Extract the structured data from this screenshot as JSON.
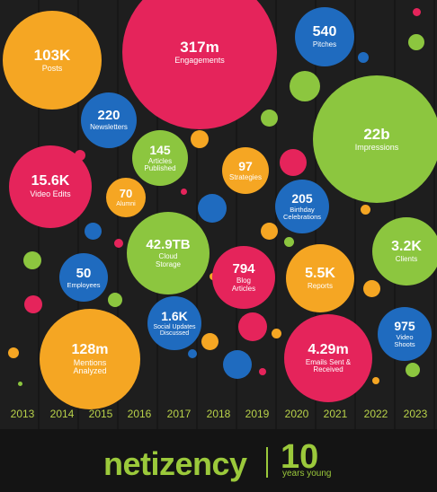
{
  "bubbles": [
    {
      "value": "103K",
      "label": "Posts",
      "color": "#f5a623"
    },
    {
      "value": "317m",
      "label": "Engagements",
      "color": "#e5245b"
    },
    {
      "value": "540",
      "label": "Pitches",
      "color": "#1f6bbf"
    },
    {
      "value": "220",
      "label": "Newsletters",
      "color": "#1f6bbf"
    },
    {
      "value": "22b",
      "label": "Impressions",
      "color": "#8cc63f"
    },
    {
      "value": "145",
      "label": "Articles Published",
      "color": "#8cc63f"
    },
    {
      "value": "97",
      "label": "Strategies",
      "color": "#f5a623"
    },
    {
      "value": "15.6K",
      "label": "Video Edits",
      "color": "#e5245b"
    },
    {
      "value": "70",
      "label": "Alumni",
      "color": "#f5a623"
    },
    {
      "value": "205",
      "label": "Birthday Celebrations",
      "color": "#1f6bbf"
    },
    {
      "value": "42.9TB",
      "label": "Cloud Storage",
      "color": "#8cc63f"
    },
    {
      "value": "3.2K",
      "label": "Clients",
      "color": "#8cc63f"
    },
    {
      "value": "794",
      "label": "Blog Articles",
      "color": "#e5245b"
    },
    {
      "value": "5.5K",
      "label": "Reports",
      "color": "#f5a623"
    },
    {
      "value": "50",
      "label": "Employees",
      "color": "#1f6bbf"
    },
    {
      "value": "1.6K",
      "label": "Social Updates Discussed",
      "color": "#1f6bbf"
    },
    {
      "value": "975",
      "label": "Video Shoots",
      "color": "#1f6bbf"
    },
    {
      "value": "128m",
      "label": "Mentions Analyzed",
      "color": "#f5a623"
    },
    {
      "value": "4.29m",
      "label": "Emails Sent & Received",
      "color": "#e5245b"
    }
  ],
  "years": [
    "2013",
    "2014",
    "2015",
    "2016",
    "2017",
    "2018",
    "2019",
    "2020",
    "2021",
    "2022",
    "2023"
  ],
  "footer": {
    "brand": "netizency",
    "anniversary": "10",
    "tagline": "years young"
  },
  "colors": {
    "orange": "#f5a623",
    "pink": "#e5245b",
    "blue": "#1f6bbf",
    "green": "#8cc63f",
    "background": "#1b1b1b"
  }
}
